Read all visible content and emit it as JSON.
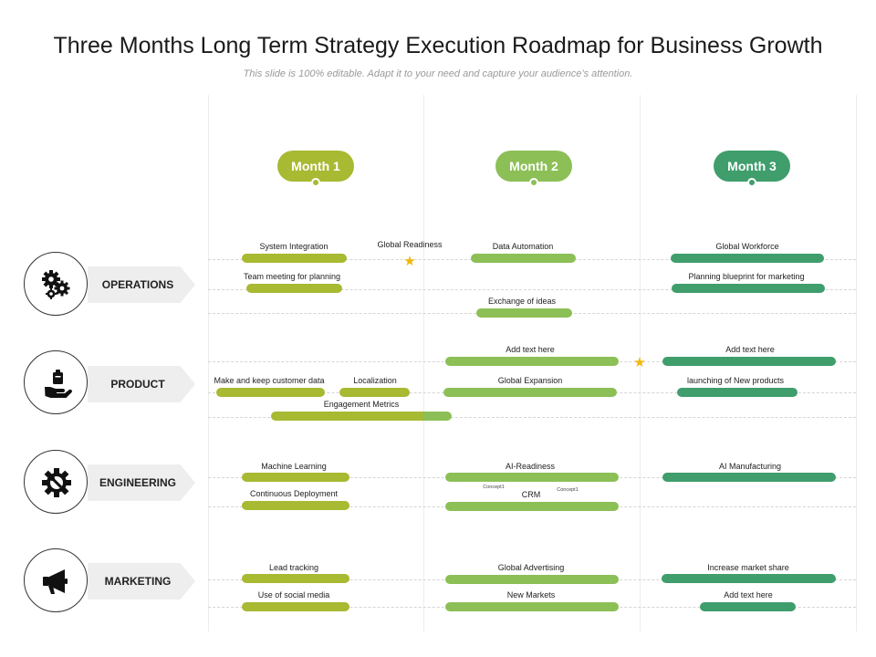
{
  "header": {
    "title": "Three Months Long Term Strategy Execution Roadmap for Business Growth",
    "subtitle": "This slide is 100% editable. Adapt it to your need and capture your audience’s attention."
  },
  "months": [
    "Month 1",
    "Month 2",
    "Month 3"
  ],
  "colors": {
    "month1": "#a8b932",
    "month2": "#8cbf56",
    "month3": "#3f9e6c"
  },
  "categories": [
    {
      "label": "OPERATIONS",
      "icon": "gears-icon"
    },
    {
      "label": "PRODUCT",
      "icon": "hand-holding-box-icon"
    },
    {
      "label": "ENGINEERING",
      "icon": "wrench-gear-icon"
    },
    {
      "label": "MARKETING",
      "icon": "megaphone-icon"
    }
  ],
  "tasks": [
    {
      "label": "System Integration",
      "month": 1,
      "row": "operations"
    },
    {
      "label": "Team meeting for planning",
      "month": 1,
      "row": "operations"
    },
    {
      "label": "Global Readiness",
      "month": 1,
      "row": "operations",
      "milestone": true
    },
    {
      "label": "Data Automation",
      "month": 2,
      "row": "operations"
    },
    {
      "label": "Exchange of ideas",
      "month": 2,
      "row": "operations"
    },
    {
      "label": "Global Workforce",
      "month": 3,
      "row": "operations"
    },
    {
      "label": "Planning blueprint for marketing",
      "month": 3,
      "row": "operations"
    },
    {
      "label": "Add text here",
      "month": 2,
      "row": "product"
    },
    {
      "label": "Add text here",
      "month": 3,
      "row": "product"
    },
    {
      "label": "Make and keep customer data",
      "month": 1,
      "row": "product"
    },
    {
      "label": "Localization",
      "month": 1,
      "row": "product"
    },
    {
      "label": "Global Expansion",
      "month": 2,
      "row": "product"
    },
    {
      "label": "launching of New  products",
      "month": 3,
      "row": "product"
    },
    {
      "label": "Engagement Metrics",
      "month": 1,
      "row": "product"
    },
    {
      "label": "Machine Learning",
      "month": 1,
      "row": "engineering"
    },
    {
      "label": "Continuous Deployment",
      "month": 1,
      "row": "engineering"
    },
    {
      "label": "AI-Readiness",
      "month": 2,
      "row": "engineering"
    },
    {
      "label": "CRM",
      "month": 2,
      "row": "engineering"
    },
    {
      "label": "AI Manufacturing",
      "month": 3,
      "row": "engineering"
    },
    {
      "label": "Lead tracking",
      "month": 1,
      "row": "marketing"
    },
    {
      "label": "Use of social media",
      "month": 1,
      "row": "marketing"
    },
    {
      "label": "Global Advertising",
      "month": 2,
      "row": "marketing"
    },
    {
      "label": "New Markets",
      "month": 2,
      "row": "marketing"
    },
    {
      "label": "Increase market share",
      "month": 3,
      "row": "marketing"
    },
    {
      "label": "Add text here",
      "month": 3,
      "row": "marketing"
    }
  ],
  "notes": {
    "concept_left": "Concept1",
    "concept_right": "Concept1"
  }
}
